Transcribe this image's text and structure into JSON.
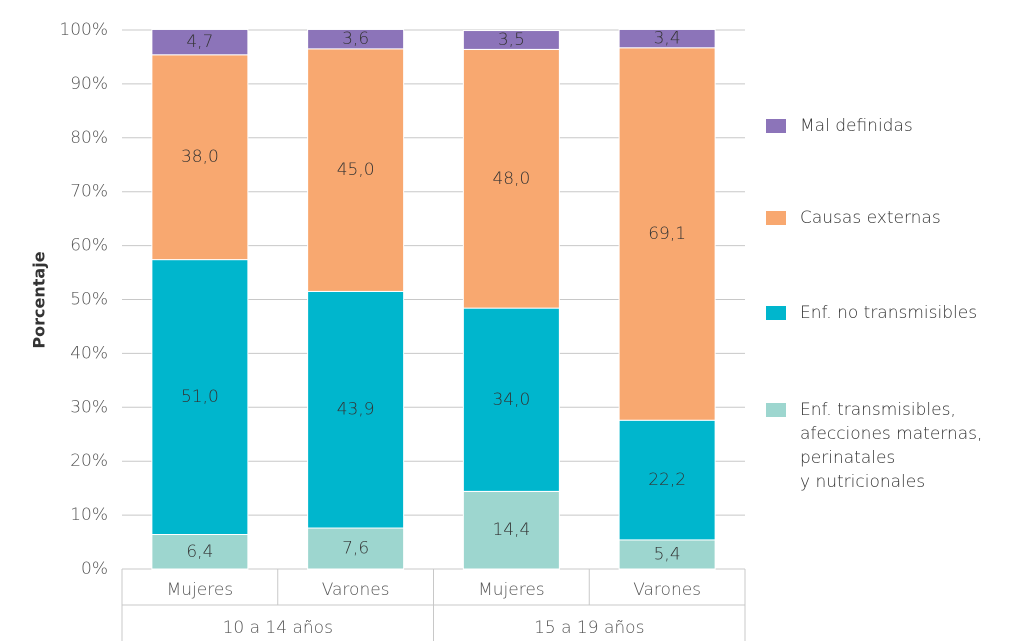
{
  "chart_data": {
    "type": "stacked_bar",
    "y_label": "Porcentaje",
    "categories": [
      "Mujeres",
      "Varones",
      "Mujeres",
      "Varones"
    ],
    "groups": [
      "10 a 14 años",
      "15 a 19 años"
    ],
    "series": [
      {
        "name": "Enf. transmisibles,\nafecciones maternas,\nperinatales\ny nutricionales",
        "color": "#9dd6cf",
        "values": [
          6.4,
          7.6,
          14.4,
          5.4
        ],
        "value_labels": [
          "6,4",
          "7,6",
          "14,4",
          "5,4"
        ]
      },
      {
        "name": "Enf. no transmisibles",
        "color": "#00b6cd",
        "values": [
          51.0,
          43.9,
          34.0,
          22.2
        ],
        "value_labels": [
          "51,0",
          "43,9",
          "34,0",
          "22,2"
        ]
      },
      {
        "name": "Causas externas",
        "color": "#f8a870",
        "values": [
          38.0,
          45.0,
          48.0,
          69.1
        ],
        "value_labels": [
          "38,0",
          "45,0",
          "48,0",
          "69,1"
        ]
      },
      {
        "name": "Mal definidas",
        "color": "#8c74b9",
        "values": [
          4.7,
          3.6,
          3.5,
          3.4
        ],
        "value_labels": [
          "4,7",
          "3,6",
          "3,5",
          "3,4"
        ]
      }
    ],
    "ylim": [
      0,
      100
    ],
    "yticks": [
      {
        "value": 0,
        "label": "0%"
      },
      {
        "value": 10,
        "label": "10%"
      },
      {
        "value": 20,
        "label": "20%"
      },
      {
        "value": 30,
        "label": "30%"
      },
      {
        "value": 40,
        "label": "40%"
      },
      {
        "value": 50,
        "label": "50%"
      },
      {
        "value": 60,
        "label": "60%"
      },
      {
        "value": 70,
        "label": "70%"
      },
      {
        "value": 80,
        "label": "80%"
      },
      {
        "value": 90,
        "label": "90%"
      },
      {
        "value": 100,
        "label": "100%"
      }
    ],
    "grid": true,
    "legend_position": "right"
  }
}
